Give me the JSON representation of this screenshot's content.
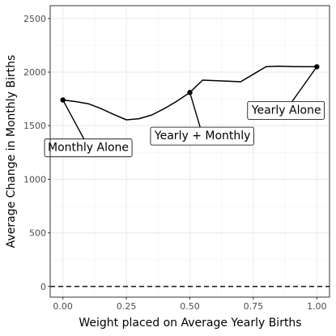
{
  "chart_data": {
    "type": "line",
    "xlabel": "Weight placed on Average Yearly Births",
    "ylabel": "Average Change in Monthly Births",
    "xlim": [
      -0.05,
      1.05
    ],
    "ylim": [
      -100,
      2620
    ],
    "x_ticks": [
      0,
      0.25,
      0.5,
      0.75,
      1
    ],
    "x_tick_labels": [
      "0.00",
      "0.25",
      "0.50",
      "0.75",
      "1.00"
    ],
    "y_ticks": [
      0,
      500,
      1000,
      1500,
      2000,
      2500
    ],
    "y_tick_labels": [
      "0",
      "500",
      "1000",
      "1500",
      "2000",
      "2500"
    ],
    "grid": true,
    "reference_line": {
      "y": 0,
      "style": "dashed"
    },
    "series": [
      {
        "x": [
          0,
          0.05,
          0.1,
          0.15,
          0.2,
          0.25,
          0.3,
          0.35,
          0.4,
          0.45,
          0.5,
          0.55,
          0.6,
          0.65,
          0.7,
          0.75,
          0.8,
          0.85,
          0.9,
          0.95,
          1.0
        ],
        "values": [
          1740,
          1725,
          1705,
          1660,
          1605,
          1555,
          1565,
          1600,
          1660,
          1730,
          1810,
          1925,
          1920,
          1915,
          1910,
          1980,
          2050,
          2055,
          2052,
          2050,
          2050
        ]
      }
    ],
    "highlight_points": [
      {
        "x": 0,
        "y": 1740
      },
      {
        "x": 0.5,
        "y": 1810
      },
      {
        "x": 1,
        "y": 2050
      }
    ],
    "annotations": [
      {
        "text": "Monthly Alone",
        "x": 0.1,
        "y": 1300,
        "point_x": 0,
        "point_y": 1740
      },
      {
        "text": "Yearly + Monthly",
        "x": 0.55,
        "y": 1410,
        "point_x": 0.5,
        "point_y": 1810
      },
      {
        "text": "Yearly Alone",
        "x": 0.88,
        "y": 1650,
        "point_x": 1,
        "point_y": 2050
      }
    ]
  }
}
